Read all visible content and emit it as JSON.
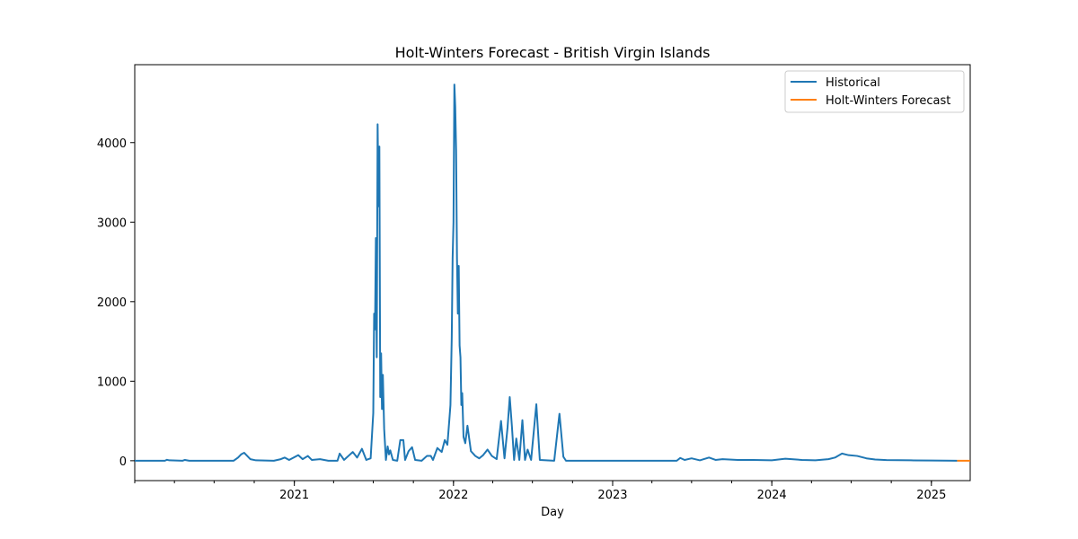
{
  "chart_data": {
    "type": "line",
    "title": "Holt-Winters Forecast - British Virgin Islands",
    "xlabel": "Day",
    "ylabel": "",
    "xlim": [
      "2020-01-01",
      "2025-03-31"
    ],
    "ylim": [
      -250,
      4980
    ],
    "x_ticks": [
      {
        "date": "2021-01-01",
        "label": "2021"
      },
      {
        "date": "2022-01-01",
        "label": "2022"
      },
      {
        "date": "2023-01-01",
        "label": "2023"
      },
      {
        "date": "2024-01-01",
        "label": "2024"
      },
      {
        "date": "2025-01-01",
        "label": "2025"
      }
    ],
    "y_ticks": [
      0,
      1000,
      2000,
      3000,
      4000
    ],
    "grid": false,
    "legend_position": "top-right",
    "series": [
      {
        "name": "Historical",
        "color": "#1f77b4",
        "points": [
          [
            "2020-01-01",
            0
          ],
          [
            "2020-03-10",
            0
          ],
          [
            "2020-03-15",
            12
          ],
          [
            "2020-03-20",
            5
          ],
          [
            "2020-04-20",
            0
          ],
          [
            "2020-04-25",
            10
          ],
          [
            "2020-05-05",
            0
          ],
          [
            "2020-08-15",
            0
          ],
          [
            "2020-08-25",
            40
          ],
          [
            "2020-09-01",
            80
          ],
          [
            "2020-09-08",
            100
          ],
          [
            "2020-09-15",
            60
          ],
          [
            "2020-09-22",
            20
          ],
          [
            "2020-10-05",
            5
          ],
          [
            "2020-11-15",
            0
          ],
          [
            "2020-12-01",
            20
          ],
          [
            "2020-12-10",
            40
          ],
          [
            "2020-12-20",
            10
          ],
          [
            "2021-01-10",
            70
          ],
          [
            "2021-01-20",
            20
          ],
          [
            "2021-02-01",
            60
          ],
          [
            "2021-02-10",
            10
          ],
          [
            "2021-03-01",
            20
          ],
          [
            "2021-03-20",
            0
          ],
          [
            "2021-04-10",
            0
          ],
          [
            "2021-04-15",
            90
          ],
          [
            "2021-04-25",
            10
          ],
          [
            "2021-05-05",
            60
          ],
          [
            "2021-05-15",
            110
          ],
          [
            "2021-05-25",
            40
          ],
          [
            "2021-06-05",
            150
          ],
          [
            "2021-06-15",
            10
          ],
          [
            "2021-06-25",
            30
          ],
          [
            "2021-07-01",
            600
          ],
          [
            "2021-07-03",
            1850
          ],
          [
            "2021-07-05",
            1650
          ],
          [
            "2021-07-07",
            2800
          ],
          [
            "2021-07-09",
            1300
          ],
          [
            "2021-07-11",
            4230
          ],
          [
            "2021-07-13",
            3200
          ],
          [
            "2021-07-15",
            3950
          ],
          [
            "2021-07-17",
            800
          ],
          [
            "2021-07-19",
            1350
          ],
          [
            "2021-07-21",
            650
          ],
          [
            "2021-07-23",
            1080
          ],
          [
            "2021-07-26",
            400
          ],
          [
            "2021-07-30",
            10
          ],
          [
            "2021-08-03",
            180
          ],
          [
            "2021-08-06",
            80
          ],
          [
            "2021-08-09",
            130
          ],
          [
            "2021-08-15",
            10
          ],
          [
            "2021-08-25",
            0
          ],
          [
            "2021-09-01",
            260
          ],
          [
            "2021-09-08",
            260
          ],
          [
            "2021-09-12",
            10
          ],
          [
            "2021-09-20",
            120
          ],
          [
            "2021-09-28",
            170
          ],
          [
            "2021-10-05",
            10
          ],
          [
            "2021-10-20",
            0
          ],
          [
            "2021-11-01",
            60
          ],
          [
            "2021-11-10",
            60
          ],
          [
            "2021-11-15",
            10
          ],
          [
            "2021-11-25",
            160
          ],
          [
            "2021-12-05",
            110
          ],
          [
            "2021-12-12",
            260
          ],
          [
            "2021-12-18",
            200
          ],
          [
            "2021-12-22",
            480
          ],
          [
            "2021-12-25",
            700
          ],
          [
            "2021-12-28",
            1550
          ],
          [
            "2021-12-30",
            2550
          ],
          [
            "2022-01-01",
            3000
          ],
          [
            "2022-01-03",
            4730
          ],
          [
            "2022-01-05",
            4450
          ],
          [
            "2022-01-07",
            3900
          ],
          [
            "2022-01-09",
            2550
          ],
          [
            "2022-01-11",
            1850
          ],
          [
            "2022-01-13",
            2450
          ],
          [
            "2022-01-15",
            1450
          ],
          [
            "2022-01-17",
            1300
          ],
          [
            "2022-01-19",
            700
          ],
          [
            "2022-01-21",
            850
          ],
          [
            "2022-01-24",
            300
          ],
          [
            "2022-01-28",
            220
          ],
          [
            "2022-02-02",
            440
          ],
          [
            "2022-02-06",
            280
          ],
          [
            "2022-02-10",
            120
          ],
          [
            "2022-02-20",
            60
          ],
          [
            "2022-03-01",
            30
          ],
          [
            "2022-03-10",
            70
          ],
          [
            "2022-03-20",
            140
          ],
          [
            "2022-03-30",
            60
          ],
          [
            "2022-04-10",
            20
          ],
          [
            "2022-04-20",
            500
          ],
          [
            "2022-04-28",
            30
          ],
          [
            "2022-05-05",
            420
          ],
          [
            "2022-05-10",
            800
          ],
          [
            "2022-05-15",
            430
          ],
          [
            "2022-05-20",
            10
          ],
          [
            "2022-05-25",
            280
          ],
          [
            "2022-06-01",
            10
          ],
          [
            "2022-06-08",
            510
          ],
          [
            "2022-06-14",
            10
          ],
          [
            "2022-06-20",
            140
          ],
          [
            "2022-06-28",
            10
          ],
          [
            "2022-07-10",
            710
          ],
          [
            "2022-07-18",
            10
          ],
          [
            "2022-08-20",
            0
          ],
          [
            "2022-09-01",
            590
          ],
          [
            "2022-09-10",
            50
          ],
          [
            "2022-09-16",
            0
          ],
          [
            "2023-05-28",
            0
          ],
          [
            "2023-06-05",
            35
          ],
          [
            "2023-06-15",
            10
          ],
          [
            "2023-07-01",
            30
          ],
          [
            "2023-07-20",
            5
          ],
          [
            "2023-08-10",
            40
          ],
          [
            "2023-08-25",
            10
          ],
          [
            "2023-09-10",
            20
          ],
          [
            "2023-10-15",
            10
          ],
          [
            "2023-11-20",
            10
          ],
          [
            "2024-01-01",
            5
          ],
          [
            "2024-02-01",
            25
          ],
          [
            "2024-03-10",
            10
          ],
          [
            "2024-04-10",
            5
          ],
          [
            "2024-05-10",
            20
          ],
          [
            "2024-05-25",
            40
          ],
          [
            "2024-06-10",
            90
          ],
          [
            "2024-06-25",
            70
          ],
          [
            "2024-07-15",
            60
          ],
          [
            "2024-08-05",
            30
          ],
          [
            "2024-08-25",
            15
          ],
          [
            "2024-09-20",
            8
          ],
          [
            "2024-11-15",
            5
          ],
          [
            "2025-01-01",
            3
          ],
          [
            "2025-03-01",
            0
          ]
        ]
      },
      {
        "name": "Holt-Winters Forecast",
        "color": "#ff7f0e",
        "points": [
          [
            "2025-03-01",
            0
          ],
          [
            "2025-03-31",
            0
          ]
        ]
      }
    ]
  }
}
